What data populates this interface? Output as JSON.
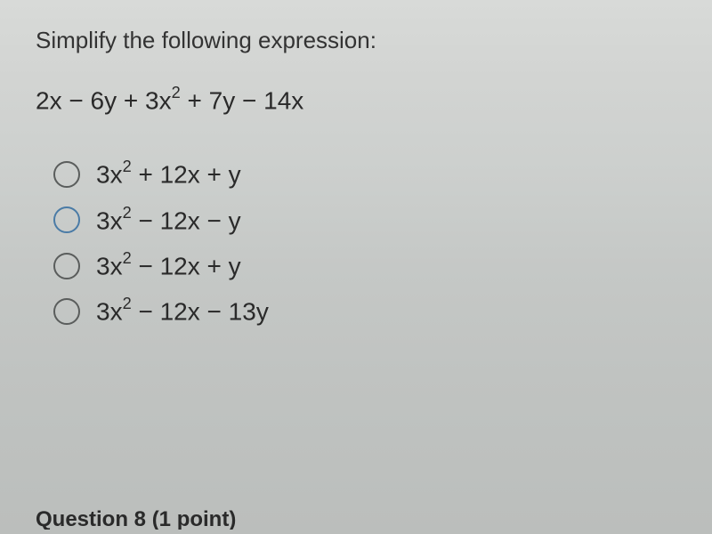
{
  "question": {
    "prompt": "Simplify the following expression:",
    "expression_parts": {
      "term1": "2x",
      "op1": " − ",
      "term2": "6y",
      "op2": " + ",
      "term3": "3x",
      "exp3": "2",
      "op3": " + ",
      "term4": "7y",
      "op4": " − ",
      "term5": "14x"
    }
  },
  "options": [
    {
      "base1": "3x",
      "exp1": "2",
      "rest": " + 12x + y",
      "highlighted": false
    },
    {
      "base1": "3x",
      "exp1": "2",
      "rest": " − 12x − y",
      "highlighted": true
    },
    {
      "base1": "3x",
      "exp1": "2",
      "rest": " − 12x + y",
      "highlighted": false
    },
    {
      "base1": "3x",
      "exp1": "2",
      "rest": " − 12x − 13y",
      "highlighted": false
    }
  ],
  "cutoff_text": "Question 8 (1 point)",
  "styling": {
    "background_gradient": [
      "#d8dad8",
      "#bbbebc"
    ],
    "text_color": "#2a2a2a",
    "radio_border_color": "#5a5d5c",
    "radio_highlighted_color": "#4a7ba6",
    "question_fontsize": 26,
    "expression_fontsize": 28,
    "option_fontsize": 28,
    "radio_size": 30
  }
}
